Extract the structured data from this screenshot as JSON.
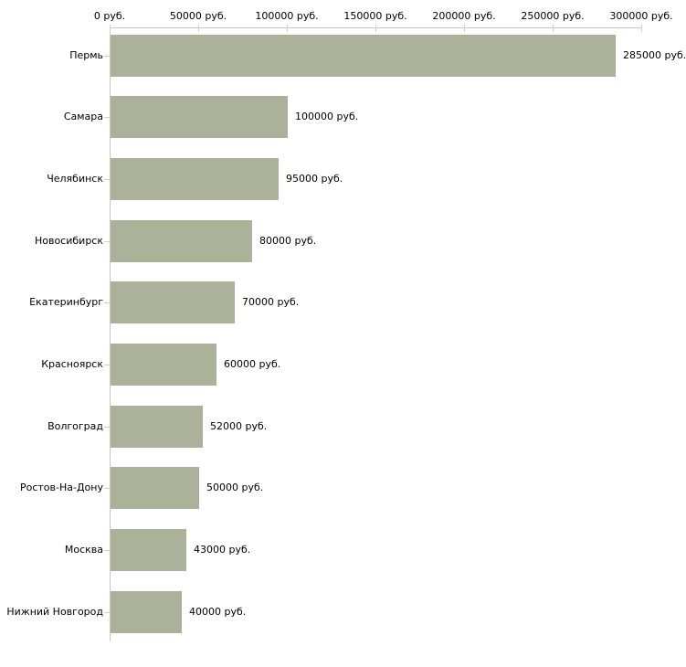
{
  "chart_data": {
    "type": "bar",
    "orientation": "horizontal",
    "title": "",
    "xlabel": "",
    "ylabel": "",
    "categories": [
      "Пермь",
      "Самара",
      "Челябинск",
      "Новосибирск",
      "Екатеринбург",
      "Красноярск",
      "Волгоград",
      "Ростов-На-Дону",
      "Москва",
      "Нижний Новгород"
    ],
    "values": [
      285000,
      100000,
      95000,
      80000,
      70000,
      60000,
      52000,
      50000,
      43000,
      40000
    ],
    "value_labels": [
      "285000 руб.",
      "100000 руб.",
      "95000 руб.",
      "80000 руб.",
      "70000 руб.",
      "60000 руб.",
      "52000 руб.",
      "50000 руб.",
      "43000 руб.",
      "40000 руб."
    ],
    "x_ticks": [
      0,
      50000,
      100000,
      150000,
      200000,
      250000,
      300000
    ],
    "x_tick_labels": [
      "0 руб.",
      "50000 руб.",
      "100000 руб.",
      "150000 руб.",
      "200000 руб.",
      "250000 руб.",
      "300000 руб."
    ],
    "xlim": [
      0,
      300000
    ],
    "grid": false,
    "legend": false,
    "unit": "руб.",
    "colors": {
      "bar": "#acb29a",
      "axis_line": "#c6c6c6",
      "tick_mark": "#d6d2ac",
      "text": "#000000",
      "background": "#ffffff"
    }
  }
}
